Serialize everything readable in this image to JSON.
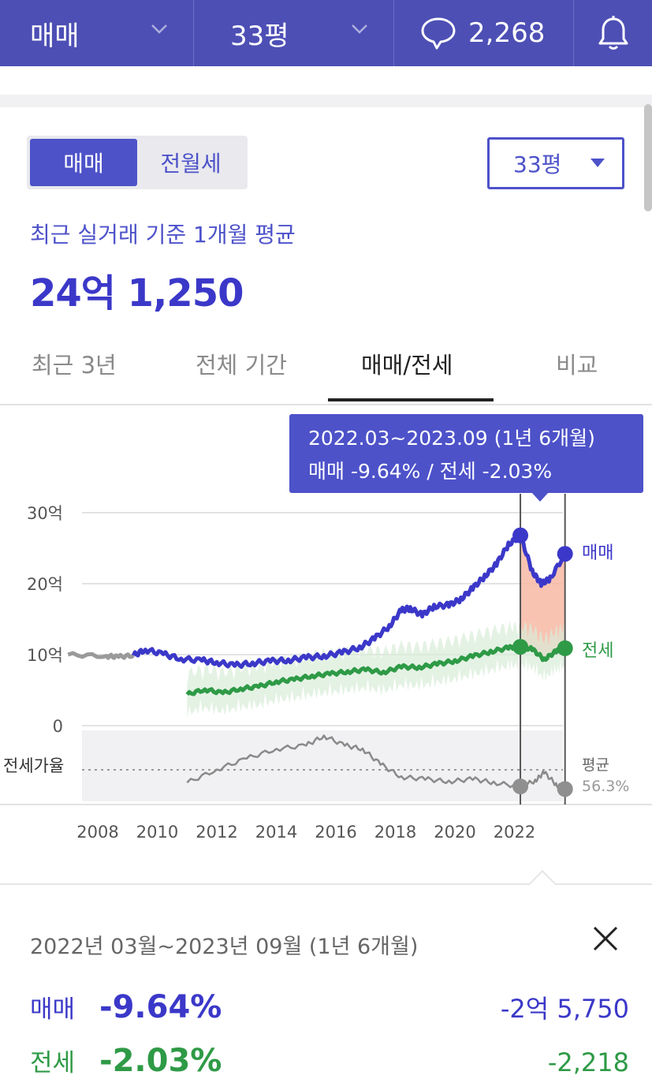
{
  "topbar": {
    "trade_type": "매매",
    "size": "33평",
    "comment_count": "2,268"
  },
  "toggle": {
    "active": "매매",
    "inactive": "전월세"
  },
  "size_select": {
    "value": "33평"
  },
  "summary": {
    "caption": "최근 실거래 기준 1개월 평균",
    "price": "24억 1,250"
  },
  "tabs": [
    {
      "label": "최근 3년",
      "active": false
    },
    {
      "label": "전체 기간",
      "active": false
    },
    {
      "label": "매매/전세",
      "active": true
    },
    {
      "label": "비교",
      "active": false
    }
  ],
  "tooltip": {
    "period": "2022.03~2023.09 (1년 6개월)",
    "change": "매매 -9.64%  /  전세 -2.03%"
  },
  "chart_data": {
    "type": "line",
    "y_unit": "억",
    "ylim": [
      0,
      30
    ],
    "yticks": [
      "30억",
      "20억",
      "10억",
      "0"
    ],
    "xticks": [
      "2008",
      "2010",
      "2012",
      "2014",
      "2016",
      "2018",
      "2020",
      "2022"
    ],
    "selection": {
      "start": 2022.2,
      "end": 2023.7
    },
    "series": [
      {
        "name": "매매",
        "color": "#3b38c9",
        "points": [
          [
            2007.0,
            10.0
          ],
          [
            2008.3,
            9.8
          ],
          [
            2008.7,
            9.7
          ],
          [
            2009.2,
            9.9
          ],
          [
            2009.6,
            10.7
          ],
          [
            2010.2,
            10.1
          ],
          [
            2010.8,
            9.4
          ],
          [
            2011.5,
            9.2
          ],
          [
            2012.0,
            8.9
          ],
          [
            2012.6,
            8.5
          ],
          [
            2013.2,
            8.8
          ],
          [
            2013.8,
            9.1
          ],
          [
            2014.4,
            9.2
          ],
          [
            2015.0,
            9.6
          ],
          [
            2015.6,
            9.8
          ],
          [
            2016.2,
            10.3
          ],
          [
            2016.8,
            11.0
          ],
          [
            2017.3,
            12.3
          ],
          [
            2017.8,
            14.0
          ],
          [
            2018.2,
            16.3
          ],
          [
            2018.5,
            16.5
          ],
          [
            2018.9,
            15.6
          ],
          [
            2019.3,
            16.8
          ],
          [
            2019.8,
            17.0
          ],
          [
            2020.2,
            17.8
          ],
          [
            2020.6,
            19.4
          ],
          [
            2021.0,
            21.0
          ],
          [
            2021.4,
            22.8
          ],
          [
            2021.8,
            25.5
          ],
          [
            2022.2,
            26.8
          ],
          [
            2022.6,
            21.7
          ],
          [
            2022.9,
            20.0
          ],
          [
            2023.2,
            20.7
          ],
          [
            2023.7,
            24.2
          ]
        ]
      },
      {
        "name": "전세",
        "color": "#2e9a46",
        "points": [
          [
            2011.0,
            4.4
          ],
          [
            2011.6,
            5.1
          ],
          [
            2012.2,
            4.6
          ],
          [
            2012.8,
            5.2
          ],
          [
            2013.4,
            5.5
          ],
          [
            2014.0,
            6.2
          ],
          [
            2014.6,
            6.5
          ],
          [
            2015.2,
            7.0
          ],
          [
            2015.8,
            7.3
          ],
          [
            2016.4,
            7.6
          ],
          [
            2017.0,
            7.9
          ],
          [
            2017.6,
            7.5
          ],
          [
            2018.2,
            8.3
          ],
          [
            2018.8,
            8.2
          ],
          [
            2019.4,
            8.7
          ],
          [
            2020.0,
            9.1
          ],
          [
            2020.6,
            9.8
          ],
          [
            2021.2,
            10.4
          ],
          [
            2021.8,
            11.0
          ],
          [
            2022.2,
            11.1
          ],
          [
            2022.6,
            10.8
          ],
          [
            2023.0,
            9.3
          ],
          [
            2023.4,
            10.5
          ],
          [
            2023.7,
            10.9
          ]
        ]
      },
      {
        "name": "전세가율",
        "color": "#8a8a8a",
        "points": [
          [
            2011.0,
            58.0
          ],
          [
            2012.0,
            61.5
          ],
          [
            2013.0,
            64.5
          ],
          [
            2014.0,
            67.0
          ],
          [
            2015.0,
            68.0
          ],
          [
            2015.6,
            70.5
          ],
          [
            2016.3,
            68.0
          ],
          [
            2016.9,
            67.0
          ],
          [
            2017.5,
            63.0
          ],
          [
            2018.2,
            59.5
          ],
          [
            2019.0,
            59.0
          ],
          [
            2019.8,
            58.3
          ],
          [
            2020.6,
            59.0
          ],
          [
            2021.3,
            58.0
          ],
          [
            2022.2,
            57.0
          ],
          [
            2022.7,
            58.5
          ],
          [
            2023.0,
            60.8
          ],
          [
            2023.4,
            57.5
          ],
          [
            2023.7,
            56.3
          ]
        ]
      }
    ],
    "end_labels": {
      "trade": "매매",
      "jeonse": "전세",
      "ratio_title": "평균",
      "ratio_value": "56.3%"
    },
    "lower_panel_label": "전세가율"
  },
  "detail": {
    "range": "2022년 03월~2023년 09월 (1년 6개월)",
    "rows": [
      {
        "label": "매매",
        "pct": "-9.64%",
        "amount": "-2억 5,750"
      },
      {
        "label": "전세",
        "pct": "-2.03%",
        "amount": "-2,218"
      }
    ]
  },
  "colors": {
    "brand": "#4d4fb5",
    "trade": "#3b38c9",
    "jeonse": "#2e9a46",
    "gap_fill": "#f8b9a4"
  },
  "icons": {
    "comment": "speech-bubble-icon",
    "bell": "bell-icon",
    "dropdown": "chevron-down-icon",
    "close": "close-icon"
  }
}
